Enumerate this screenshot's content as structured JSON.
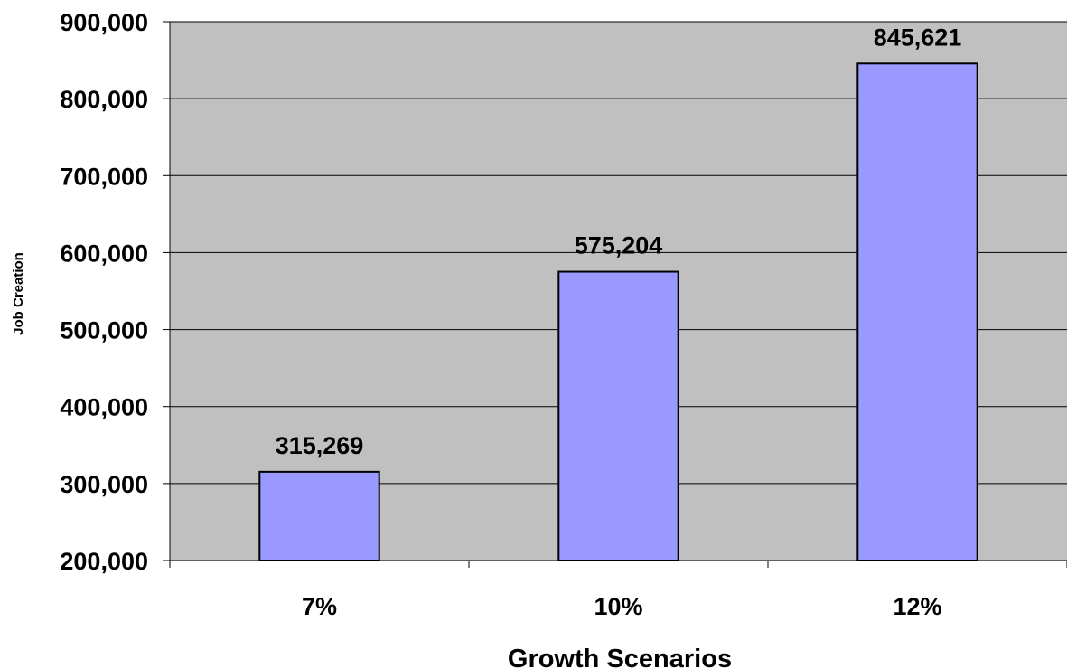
{
  "chart_data": {
    "type": "bar",
    "title": "",
    "xlabel": "Growth Scenarios",
    "ylabel": "Job Creation",
    "categories": [
      "7%",
      "10%",
      "12%"
    ],
    "values": [
      315269,
      575204,
      845621
    ],
    "data_labels": [
      "315,269",
      "575,204",
      "845,621"
    ],
    "ylim": [
      200000,
      900000
    ],
    "yticks": [
      200000,
      300000,
      400000,
      500000,
      600000,
      700000,
      800000,
      900000
    ],
    "ytick_labels": [
      "200,000",
      "300,000",
      "400,000",
      "500,000",
      "600,000",
      "700,000",
      "800,000",
      "900,000"
    ],
    "grid": true,
    "legend": "none",
    "colors": {
      "bar_fill": "#9999ff",
      "plot_background": "#c0c0c0",
      "gridline": "#000000",
      "bar_stroke": "#000000"
    }
  }
}
